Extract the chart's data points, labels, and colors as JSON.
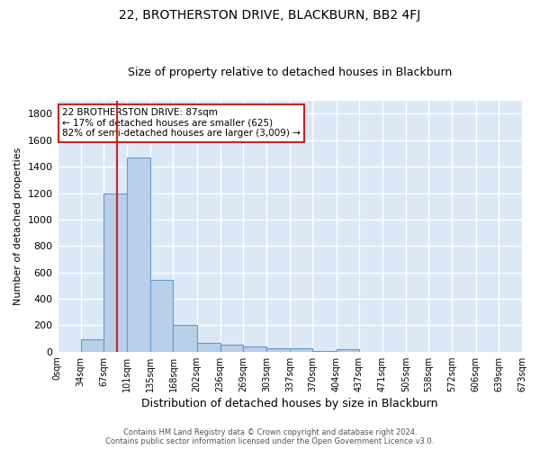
{
  "title": "22, BROTHERSTON DRIVE, BLACKBURN, BB2 4FJ",
  "subtitle": "Size of property relative to detached houses in Blackburn",
  "xlabel": "Distribution of detached houses by size in Blackburn",
  "ylabel": "Number of detached properties",
  "footer_line1": "Contains HM Land Registry data © Crown copyright and database right 2024.",
  "footer_line2": "Contains public sector information licensed under the Open Government Licence v3.0.",
  "bin_labels": [
    "0sqm",
    "34sqm",
    "67sqm",
    "101sqm",
    "135sqm",
    "168sqm",
    "202sqm",
    "236sqm",
    "269sqm",
    "303sqm",
    "337sqm",
    "370sqm",
    "404sqm",
    "437sqm",
    "471sqm",
    "505sqm",
    "538sqm",
    "572sqm",
    "606sqm",
    "639sqm",
    "673sqm"
  ],
  "bar_heights": [
    0,
    90,
    1200,
    1470,
    540,
    205,
    65,
    50,
    38,
    28,
    25,
    5,
    15,
    0,
    0,
    0,
    0,
    0,
    0,
    0
  ],
  "bar_color": "#b8d0e8",
  "bar_edge_color": "#6699cc",
  "ylim": [
    0,
    1900
  ],
  "yticks": [
    0,
    200,
    400,
    600,
    800,
    1000,
    1200,
    1400,
    1600,
    1800
  ],
  "background_color": "#dce8f5",
  "grid_color": "#ffffff",
  "property_line_x": 87,
  "red_line_color": "#cc2222",
  "annotation_text_line1": "22 BROTHERSTON DRIVE: 87sqm",
  "annotation_text_line2": "← 17% of detached houses are smaller (625)",
  "annotation_text_line3": "82% of semi-detached houses are larger (3,009) →",
  "annotation_box_edge_color": "#cc2222",
  "fig_background": "#ffffff",
  "title_fontsize": 10,
  "subtitle_fontsize": 9,
  "ylabel_fontsize": 8,
  "xlabel_fontsize": 9,
  "tick_fontsize": 7,
  "footer_fontsize": 6
}
